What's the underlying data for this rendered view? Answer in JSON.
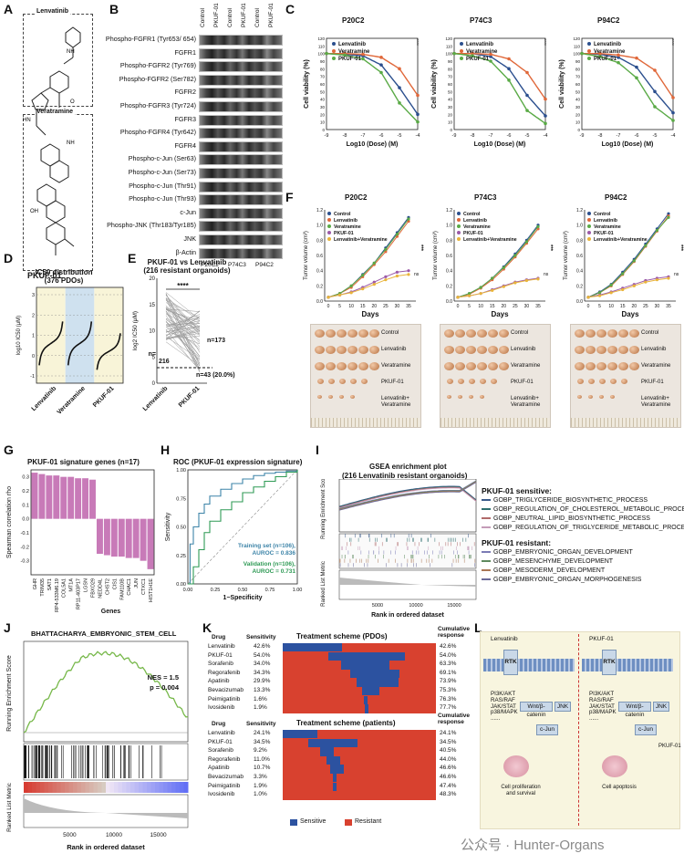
{
  "panels": {
    "A": {
      "letter": "A",
      "drug1": "Lenvatinib",
      "drug2": "Veratramine",
      "compound": "PKUF-01"
    },
    "B": {
      "letter": "B",
      "columns": [
        "Control",
        "PKUF-01",
        "Control",
        "PKUF-01",
        "Control",
        "PKUF-01"
      ],
      "rows": [
        "Phospho-FGFR1 (Tyr653/ 654)",
        "FGFR1",
        "Phospho-FGFR2 (Tyr769)",
        "Phospho-FGFR2 (Ser782)",
        "FGFR2",
        "Phospho-FGFR3 (Tyr724)",
        "FGFR3",
        "Phospho-FGFR4 (Tyr642)",
        "FGFR4",
        "Phospho-c-Jun (Ser63)",
        "Phospho-c-Jun (Ser73)",
        "Phospho-c-Jun (Thr91)",
        "Phospho-c-Jun (Thr93)",
        "c-Jun",
        "Phospho-JNK (Thr183/Tyr185)",
        "JNK",
        "β-Actin"
      ],
      "groups": [
        "P20C2",
        "P74C3",
        "P94C2"
      ]
    },
    "C": {
      "letter": "C"
    },
    "D": {
      "letter": "D",
      "title": "IC50 distribution",
      "subtitle": "(376 PDOs)",
      "ylabel": "log10 IC50 (μM)",
      "xlabels": [
        "Lenvatinib",
        "Veratramine",
        "PKUF-01"
      ],
      "yticks": [
        "3",
        "2",
        "1",
        "0",
        "-1"
      ]
    },
    "E": {
      "letter": "E",
      "title": "PKUF-01 vs Lenvatinib",
      "subtitle": "(216 resistant organoids)",
      "ylabel": "log2 IC50 (μM)",
      "stars": "****",
      "n_left": "n=\n216",
      "n_right": "n=173",
      "n_bottom": "n=43 (20.0%)",
      "xlabels": [
        "Lenvatinib",
        "PKUF-01"
      ],
      "yticks": [
        "20",
        "15",
        "10",
        "5",
        "0"
      ]
    },
    "F": {
      "letter": "F",
      "xlabel": "Days",
      "ylabel": "Tumor volume (cm³)",
      "legend": [
        "Control",
        "Lenvatinib",
        "Veratramine",
        "PKUF-01",
        "Lenvatinib+Veratramine"
      ],
      "photo_labels": [
        "Control",
        "Lenvatinib",
        "Veratramine",
        "PKUF-01",
        "Lenvatinib+\nVeratramine"
      ],
      "sig": "***",
      "ns": "ns"
    },
    "G": {
      "letter": "G",
      "title": "PKUF-01 signature genes (n=17)",
      "ylabel": "Spearman correlation rho",
      "xlabel": "Genes",
      "yticks": [
        "0.3",
        "0.2",
        "0.1",
        "0.0",
        "-0.1",
        "-0.2",
        "-0.3"
      ]
    },
    "H": {
      "letter": "H",
      "title": "ROC (PKUF-01 expression signature)",
      "xlabel": "1−Specificity",
      "ylabel": "Sensitivity",
      "train": "Training set (n=106),",
      "train_auc": "AUROC = 0.836",
      "valid": "Validation (n=106),",
      "valid_auc": "AUROC = 0.731",
      "xticks": [
        "0.00",
        "0.25",
        "0.50",
        "0.75",
        "1.00"
      ],
      "yticks": [
        "1.00",
        "0.75",
        "0.50",
        "0.25",
        "0.00"
      ]
    },
    "I": {
      "letter": "I",
      "title": "GSEA enrichment plot",
      "subtitle": "(216 Lenvatinib resistant organoids)",
      "ylabel1": "Running Enrichment Score",
      "ylabel2": "Ranked List Metric",
      "xlabel": "Rank in ordered dataset",
      "sens_title": "PKUF-01 sensitive:",
      "sens": [
        "GOBP_TRIGLYCERIDE_BIOSYNTHETIC_PROCESS",
        "GOBP_REGULATION_OF_CHOLESTEROL_METABOLIC_PROCESS",
        "GOBP_NEUTRAL_LIPID_BIOSYNTHETIC_PROCESS",
        "GOBP_REGULATION_OF_TRIGLYCERIDE_METABOLIC_PROCESS"
      ],
      "res_title": "PKUF-01 resistant:",
      "res": [
        "GOBP_EMBRYONIC_ORGAN_DEVELOPMENT",
        "GOBP_MESENCHYME_DEVELOPMENT",
        "GOBP_MESODERM_DEVELOPMENT",
        "GOBP_EMBRYONIC_ORGAN_MORPHOGENESIS"
      ],
      "xticks": [
        "5000",
        "10000",
        "15000"
      ]
    },
    "J": {
      "letter": "J",
      "title": "BHATTACHARYA_EMBRYONIC_STEM_CELL",
      "nes": "NES = 1.5",
      "p": "p = 0.004",
      "ylabel1": "Running Enrichment Score",
      "ylabel2": "Ranked List Metric",
      "xlabel": "Rank in ordered dataset",
      "xticks": [
        "5000",
        "10000",
        "15000"
      ]
    },
    "K": {
      "letter": "K",
      "title_pdo": "Treatment scheme (PDOs)",
      "title_pat": "Treatment scheme (patients)",
      "col_drug": "Drug",
      "col_sens": "Sensitivity",
      "col_cum": "Cumulative\nresponse",
      "pdo": [
        [
          "Lenvatinib",
          "42.6%",
          "42.6%"
        ],
        [
          "PKUF-01",
          "54.0%",
          "54.0%"
        ],
        [
          "Sorafenib",
          "34.0%",
          "63.3%"
        ],
        [
          "Regorafenib",
          "34.3%",
          "69.1%"
        ],
        [
          "Apatinib",
          "29.9%",
          "73.9%"
        ],
        [
          "Bevacizumab",
          "13.3%",
          "75.3%"
        ],
        [
          "Peimigatinib",
          "1.6%",
          "76.3%"
        ],
        [
          "Ivosidenib",
          "1.9%",
          "77.7%"
        ]
      ],
      "pat": [
        [
          "Lenvatinib",
          "24.1%",
          "24.1%"
        ],
        [
          "PKUF-01",
          "34.5%",
          "34.5%"
        ],
        [
          "Sorafenib",
          "9.2%",
          "40.5%"
        ],
        [
          "Regorafenib",
          "11.0%",
          "44.0%"
        ],
        [
          "Apatinib",
          "10.7%",
          "46.6%"
        ],
        [
          "Bevacizumab",
          "3.3%",
          "46.6%"
        ],
        [
          "Peimigatinib",
          "1.9%",
          "47.4%"
        ],
        [
          "Ivosidenib",
          "1.0%",
          "48.3%"
        ]
      ],
      "legend_s": "Sensitive",
      "legend_r": "Resistant"
    },
    "L": {
      "letter": "L",
      "left_drug": "Lenvatinib",
      "right_drug": "PKUF-01",
      "rtk": "RTK",
      "path1": "PI3K/AKT\nRAS/RAF\nJAK/STAT\np38/MAPK\n......",
      "wnt": "Wnt/β-catenin",
      "jnk": "JNK",
      "cjun": "c-Jun",
      "out_left": "Cell proliferation\nand survival",
      "out_right": "Cell apoptosis",
      "pkuf": "PKUF-01"
    }
  },
  "c_panels": [
    {
      "title": "P20C2",
      "xlabel": "Log10 (Dose) (M)",
      "ylabel": "Cell viability (%)",
      "legend": [
        "Lenvatinib",
        "Veratramine",
        "PKUF-01"
      ],
      "stars": [
        "****",
        "****"
      ],
      "xticks": [
        "-9",
        "-8",
        "-7",
        "-6",
        "-5",
        "-4"
      ],
      "yticks": [
        "120",
        "110",
        "100",
        "90",
        "80",
        "70",
        "60",
        "50",
        "40",
        "30",
        "20",
        "10",
        "0"
      ]
    },
    {
      "title": "P74C3",
      "xlabel": "Log10 (Dose) (M)",
      "ylabel": "Cell viability (%)",
      "legend": [
        "Lenvatinib",
        "Veratramine",
        "PKUF-01"
      ],
      "stars": [
        "****",
        "****"
      ],
      "xticks": [
        "-9",
        "-8",
        "-7",
        "-6",
        "-5",
        "-4"
      ],
      "yticks": [
        "120",
        "110",
        "100",
        "90",
        "80",
        "70",
        "60",
        "50",
        "40",
        "30",
        "20",
        "10",
        "0"
      ]
    },
    {
      "title": "P94C2",
      "xlabel": "Log10 (Dose) (M)",
      "ylabel": "Cell viability (%)",
      "legend": [
        "Lenvatinib",
        "Veratramine",
        "PKUF-01"
      ],
      "stars": [
        "****",
        "****"
      ],
      "xticks": [
        "-9",
        "-8",
        "-7",
        "-6",
        "-5",
        "-4"
      ],
      "yticks": [
        "120",
        "110",
        "100",
        "90",
        "80",
        "70",
        "60",
        "50",
        "40",
        "30",
        "20",
        "10",
        "0"
      ]
    }
  ],
  "f_panels": [
    {
      "title": "P20C2",
      "xticks": [
        "0",
        "5",
        "10",
        "15",
        "20",
        "25",
        "30",
        "35"
      ],
      "yticks": [
        "1.2",
        "1.0",
        "0.8",
        "0.6",
        "0.4",
        "0.2",
        "0.0"
      ]
    },
    {
      "title": "P74C3",
      "xticks": [
        "0",
        "5",
        "10",
        "15",
        "20",
        "25",
        "30",
        "35"
      ],
      "yticks": [
        "1.2",
        "1.0",
        "0.8",
        "0.6",
        "0.4",
        "0.2",
        "0.0"
      ]
    },
    {
      "title": "P94C2",
      "xticks": [
        "0",
        "5",
        "10",
        "15",
        "20",
        "25",
        "30",
        "35"
      ],
      "yticks": [
        "1.2",
        "1.0",
        "0.8",
        "0.6",
        "0.4",
        "0.2",
        "0.0"
      ]
    }
  ],
  "g_genes": [
    "GHR",
    "TRIM35",
    "SAT1",
    "RP4-533M6.19",
    "COL5A1",
    "MT1A",
    "RP11-403P17",
    "LGSN",
    "FBXO29",
    "NEDD4L",
    "CHST2",
    "CIS1",
    "FAM110B",
    "CHAC1",
    "JUN",
    "CTXC1",
    "HIST1H1E"
  ],
  "colors": {
    "lenv": "#2b4f8e",
    "vera": "#e0683a",
    "pkuf": "#5aaa46",
    "combo": "#e9b43a",
    "pkuf_f": "#9c5aa8",
    "pink": "#c87ab8",
    "sens": "#2c52a0",
    "res": "#d8412f",
    "train": "#3d84a8",
    "valid": "#2f9a55",
    "green": "#77b84a"
  },
  "chart_data": [
    {
      "type": "line",
      "title": "P20C2",
      "xlabel": "Log10 (Dose) (M)",
      "ylabel": "Cell viability (%)",
      "x": [
        -9,
        -8,
        -7,
        -6,
        -5,
        -4
      ],
      "series": [
        {
          "name": "Lenvatinib",
          "values": [
            100,
            99,
            97,
            85,
            55,
            20
          ]
        },
        {
          "name": "Veratramine",
          "values": [
            100,
            100,
            99,
            95,
            80,
            45
          ]
        },
        {
          "name": "PKUF-01",
          "values": [
            100,
            98,
            93,
            75,
            35,
            10
          ]
        }
      ],
      "ylim": [
        0,
        120
      ]
    },
    {
      "type": "line",
      "title": "P74C3",
      "xlabel": "Log10 (Dose) (M)",
      "ylabel": "Cell viability (%)",
      "x": [
        -9,
        -8,
        -7,
        -6,
        -5,
        -4
      ],
      "series": [
        {
          "name": "Lenvatinib",
          "values": [
            100,
            100,
            96,
            80,
            45,
            18
          ]
        },
        {
          "name": "Veratramine",
          "values": [
            100,
            100,
            99,
            93,
            75,
            40
          ]
        },
        {
          "name": "PKUF-01",
          "values": [
            100,
            97,
            90,
            65,
            25,
            8
          ]
        }
      ],
      "ylim": [
        0,
        120
      ]
    },
    {
      "type": "line",
      "title": "P94C2",
      "xlabel": "Log10 (Dose) (M)",
      "ylabel": "Cell viability (%)",
      "x": [
        -9,
        -8,
        -7,
        -6,
        -5,
        -4
      ],
      "series": [
        {
          "name": "Lenvatinib",
          "values": [
            100,
            99,
            95,
            82,
            50,
            22
          ]
        },
        {
          "name": "Veratramine",
          "values": [
            100,
            100,
            98,
            94,
            78,
            42
          ]
        },
        {
          "name": "PKUF-01",
          "values": [
            100,
            96,
            88,
            68,
            30,
            12
          ]
        }
      ],
      "ylim": [
        0,
        120
      ]
    },
    {
      "type": "line",
      "title": "P20C2 tumor volume",
      "xlabel": "Days",
      "ylabel": "Tumor volume (cm³)",
      "x": [
        0,
        5,
        10,
        15,
        20,
        25,
        30,
        35
      ],
      "series": [
        {
          "name": "Control",
          "values": [
            0.05,
            0.1,
            0.2,
            0.35,
            0.5,
            0.7,
            0.9,
            1.1
          ]
        },
        {
          "name": "Lenvatinib",
          "values": [
            0.05,
            0.1,
            0.18,
            0.32,
            0.48,
            0.65,
            0.85,
            1.05
          ]
        },
        {
          "name": "Veratramine",
          "values": [
            0.05,
            0.1,
            0.2,
            0.34,
            0.5,
            0.68,
            0.88,
            1.08
          ]
        },
        {
          "name": "PKUF-01",
          "values": [
            0.05,
            0.08,
            0.12,
            0.18,
            0.25,
            0.32,
            0.38,
            0.4
          ]
        },
        {
          "name": "Lenvatinib+Veratramine",
          "values": [
            0.05,
            0.08,
            0.11,
            0.16,
            0.22,
            0.28,
            0.33,
            0.35
          ]
        }
      ],
      "ylim": [
        0,
        1.2
      ]
    },
    {
      "type": "line",
      "title": "P74C3 tumor volume",
      "xlabel": "Days",
      "ylabel": "Tumor volume (cm³)",
      "x": [
        0,
        5,
        10,
        15,
        20,
        25,
        30,
        35
      ],
      "series": [
        {
          "name": "Control",
          "values": [
            0.05,
            0.1,
            0.18,
            0.3,
            0.45,
            0.62,
            0.8,
            1.0
          ]
        },
        {
          "name": "Lenvatinib",
          "values": [
            0.05,
            0.09,
            0.17,
            0.28,
            0.42,
            0.58,
            0.76,
            0.95
          ]
        },
        {
          "name": "Veratramine",
          "values": [
            0.05,
            0.1,
            0.18,
            0.3,
            0.44,
            0.6,
            0.78,
            0.98
          ]
        },
        {
          "name": "PKUF-01",
          "values": [
            0.05,
            0.07,
            0.1,
            0.15,
            0.2,
            0.25,
            0.28,
            0.3
          ]
        },
        {
          "name": "Lenvatinib+Veratramine",
          "values": [
            0.05,
            0.07,
            0.1,
            0.14,
            0.19,
            0.24,
            0.27,
            0.29
          ]
        }
      ],
      "ylim": [
        0,
        1.2
      ]
    },
    {
      "type": "line",
      "title": "P94C2 tumor volume",
      "xlabel": "Days",
      "ylabel": "Tumor volume (cm³)",
      "x": [
        0,
        5,
        10,
        15,
        20,
        25,
        30,
        35
      ],
      "series": [
        {
          "name": "Control",
          "values": [
            0.05,
            0.12,
            0.22,
            0.38,
            0.55,
            0.75,
            0.95,
            1.15
          ]
        },
        {
          "name": "Lenvatinib",
          "values": [
            0.05,
            0.11,
            0.2,
            0.35,
            0.52,
            0.72,
            0.92,
            1.12
          ]
        },
        {
          "name": "Veratramine",
          "values": [
            0.05,
            0.11,
            0.21,
            0.36,
            0.53,
            0.73,
            0.93,
            1.1
          ]
        },
        {
          "name": "PKUF-01",
          "values": [
            0.05,
            0.08,
            0.12,
            0.17,
            0.22,
            0.27,
            0.3,
            0.32
          ]
        },
        {
          "name": "Lenvatinib+Veratramine",
          "values": [
            0.05,
            0.07,
            0.11,
            0.15,
            0.2,
            0.25,
            0.28,
            0.3
          ]
        }
      ],
      "ylim": [
        0,
        1.2
      ]
    },
    {
      "type": "bar",
      "title": "PKUF-01 signature genes (n=17)",
      "categories": [
        "GHR",
        "TRIM35",
        "SAT1",
        "RP4-533M6.19",
        "COL5A1",
        "MT1A",
        "RP11-403P17",
        "LGSN",
        "FBXO29",
        "NEDD4L",
        "CHST2",
        "CIS1",
        "FAM110B",
        "CHAC1",
        "JUN",
        "CTXC1",
        "HIST1H1E"
      ],
      "values": [
        0.33,
        0.32,
        0.31,
        0.31,
        0.3,
        0.3,
        0.29,
        0.29,
        0.28,
        -0.25,
        -0.26,
        -0.27,
        -0.27,
        -0.28,
        -0.28,
        -0.3,
        -0.36
      ],
      "ylabel": "Spearman correlation rho",
      "xlabel": "Genes",
      "ylim": [
        -0.4,
        0.35
      ]
    },
    {
      "type": "line",
      "title": "ROC (PKUF-01 expression signature)",
      "xlabel": "1−Specificity",
      "ylabel": "Sensitivity",
      "series": [
        {
          "name": "Training set (n=106), AUROC = 0.836",
          "x": [
            0,
            0.02,
            0.05,
            0.1,
            0.15,
            0.2,
            0.3,
            0.4,
            0.5,
            0.6,
            0.7,
            0.8,
            0.9,
            1.0
          ],
          "values": [
            0,
            0.35,
            0.5,
            0.62,
            0.7,
            0.77,
            0.83,
            0.88,
            0.92,
            0.95,
            0.97,
            0.98,
            0.99,
            1.0
          ]
        },
        {
          "name": "Validation (n=106), AUROC = 0.731",
          "x": [
            0,
            0.05,
            0.1,
            0.15,
            0.2,
            0.3,
            0.4,
            0.5,
            0.6,
            0.7,
            0.8,
            0.9,
            1.0
          ],
          "values": [
            0,
            0.15,
            0.3,
            0.45,
            0.55,
            0.65,
            0.72,
            0.8,
            0.85,
            0.9,
            0.94,
            0.98,
            1.0
          ]
        }
      ],
      "ylim": [
        0,
        1
      ]
    }
  ],
  "watermark": "公众号 · Hunter-Organs"
}
